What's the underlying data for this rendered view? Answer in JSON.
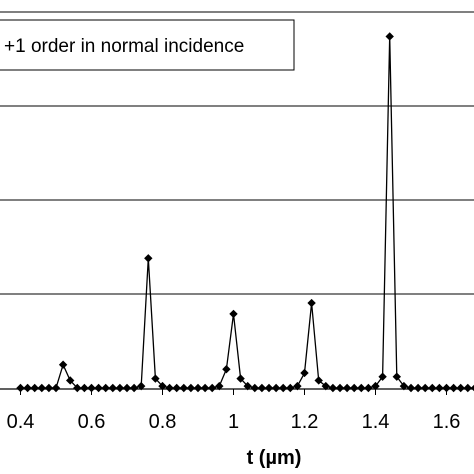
{
  "chart_data": {
    "type": "line",
    "title": "",
    "legend": {
      "label": "+1 order in normal incidence",
      "position": "top-left"
    },
    "xlabel": "t (µm)",
    "ylabel": "",
    "xlim": [
      0.4,
      1.7
    ],
    "ylim": [
      0,
      1.0
    ],
    "grid": "horizontal",
    "x_ticks": [
      {
        "value": 0.4,
        "label": "0.4"
      },
      {
        "value": 0.6,
        "label": "0.6"
      },
      {
        "value": 0.8,
        "label": "0.8"
      },
      {
        "value": 1.0,
        "label": "1"
      },
      {
        "value": 1.2,
        "label": "1.2"
      },
      {
        "value": 1.4,
        "label": "1.4"
      },
      {
        "value": 1.6,
        "label": "1.6"
      }
    ],
    "gridlines_y": [
      0.25,
      0.5,
      0.75,
      1.0
    ],
    "colors": {
      "line": "#000000",
      "marker": "#000000",
      "grid": "#000000",
      "frame": "#000000"
    },
    "series": [
      {
        "marker": "diamond",
        "x": [
          0.4,
          0.42,
          0.44,
          0.46,
          0.48,
          0.5,
          0.52,
          0.54,
          0.56,
          0.58,
          0.6,
          0.62,
          0.64,
          0.66,
          0.68,
          0.7,
          0.72,
          0.74,
          0.76,
          0.78,
          0.8,
          0.82,
          0.84,
          0.86,
          0.88,
          0.9,
          0.92,
          0.94,
          0.96,
          0.98,
          1.0,
          1.02,
          1.04,
          1.06,
          1.08,
          1.1,
          1.12,
          1.14,
          1.16,
          1.18,
          1.2,
          1.22,
          1.24,
          1.26,
          1.28,
          1.3,
          1.32,
          1.34,
          1.36,
          1.38,
          1.4,
          1.42,
          1.44,
          1.46,
          1.48,
          1.5,
          1.52,
          1.54,
          1.56,
          1.58,
          1.6,
          1.62,
          1.64,
          1.66,
          1.68,
          1.7
        ],
        "y": [
          0.0,
          0.0,
          0.0,
          0.0,
          0.0,
          0.0,
          0.062,
          0.02,
          0.0,
          0.0,
          0.0,
          0.0,
          0.0,
          0.0,
          0.0,
          0.0,
          0.0,
          0.005,
          0.345,
          0.025,
          0.005,
          0.0,
          0.0,
          0.0,
          0.0,
          0.0,
          0.0,
          0.0,
          0.005,
          0.05,
          0.197,
          0.025,
          0.005,
          0.0,
          0.0,
          0.0,
          0.0,
          0.0,
          0.0,
          0.005,
          0.04,
          0.226,
          0.02,
          0.005,
          0.0,
          0.0,
          0.0,
          0.0,
          0.0,
          0.0,
          0.005,
          0.03,
          0.935,
          0.03,
          0.005,
          0.0,
          0.0,
          0.0,
          0.0,
          0.0,
          0.0,
          0.0,
          0.0,
          0.0,
          0.0,
          0.0
        ]
      }
    ]
  }
}
